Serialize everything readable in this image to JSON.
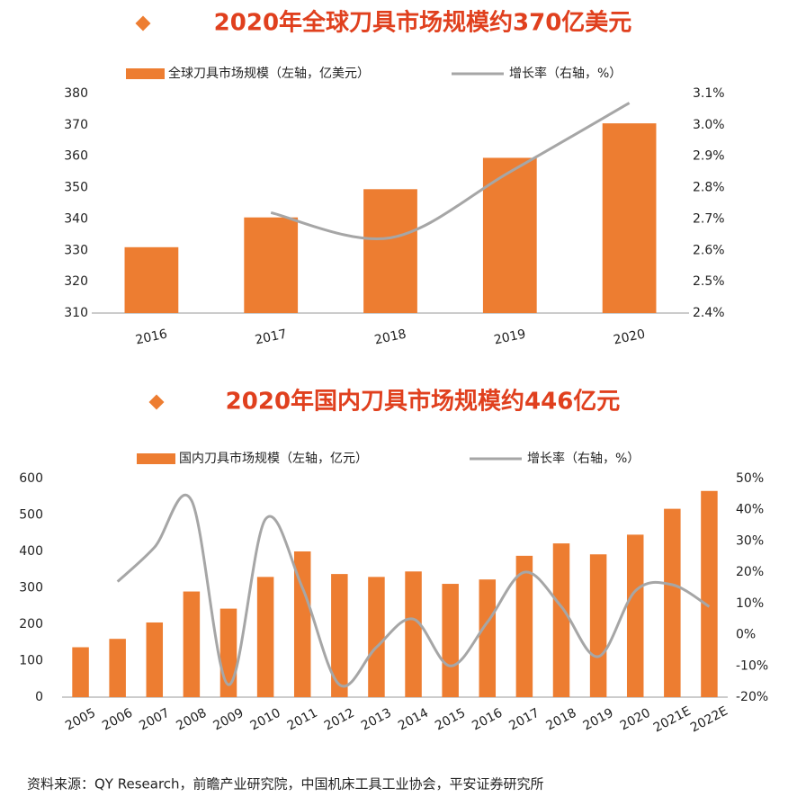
{
  "chart_data": [
    {
      "type": "bar",
      "title": "2020年全球刀具市场规模约370亿美元",
      "categories": [
        "2016",
        "2017",
        "2018",
        "2019",
        "2020"
      ],
      "series": [
        {
          "name": "全球刀具市场规模（左轴，亿美元）",
          "color": "#ed7d31",
          "values": [
            331,
            340.5,
            349.5,
            359.5,
            370.5
          ]
        },
        {
          "name": "增长率（右轴，%）",
          "color": "#a6a6a6",
          "axis": "y2",
          "type": "line",
          "values": [
            null,
            2.72,
            2.64,
            2.85,
            3.07
          ]
        }
      ],
      "ylim": [
        310,
        380
      ],
      "yticks": [
        310,
        320,
        330,
        340,
        350,
        360,
        370,
        380
      ],
      "y2lim": [
        2.4,
        3.1
      ],
      "y2ticks": [
        {
          "value": 2.4,
          "label": "2.4%"
        },
        {
          "value": 2.5,
          "label": "2.5%"
        },
        {
          "value": 2.6,
          "label": "2.6%"
        },
        {
          "value": 2.7,
          "label": "2.7%"
        },
        {
          "value": 2.8,
          "label": "2.8%"
        },
        {
          "value": 2.9,
          "label": "2.9%"
        },
        {
          "value": 3.0,
          "label": "3.0%"
        },
        {
          "value": 3.1,
          "label": "3.1%"
        }
      ],
      "grid": false
    },
    {
      "type": "bar",
      "title": "2020年国内刀具市场规模约446亿元",
      "categories": [
        "2005",
        "2006",
        "2007",
        "2008",
        "2009",
        "2010",
        "2011",
        "2012",
        "2013",
        "2014",
        "2015",
        "2016",
        "2017",
        "2018",
        "2019",
        "2020",
        "2021E",
        "2022E"
      ],
      "series": [
        {
          "name": "国内刀具市场规模（左轴，亿元）",
          "color": "#ed7d31",
          "values": [
            137,
            160,
            205,
            290,
            243,
            330,
            400,
            338,
            330,
            345,
            311,
            323,
            388,
            422,
            392,
            446,
            517,
            566
          ]
        },
        {
          "name": "增长率（右轴，%）",
          "color": "#a6a6a6",
          "axis": "y2",
          "type": "line",
          "values": [
            null,
            17,
            28,
            43,
            -16,
            37,
            15,
            -16,
            -4,
            5,
            -10,
            4,
            20,
            9,
            -7,
            14,
            16,
            9
          ]
        }
      ],
      "ylim": [
        0,
        600
      ],
      "yticks": [
        0,
        100,
        200,
        300,
        400,
        500,
        600
      ],
      "y2lim": [
        -20,
        50
      ],
      "y2ticks": [
        {
          "value": -20,
          "label": "-20%"
        },
        {
          "value": -10,
          "label": "-10%"
        },
        {
          "value": 0,
          "label": "0%"
        },
        {
          "value": 10,
          "label": "10%"
        },
        {
          "value": 20,
          "label": "20%"
        },
        {
          "value": 30,
          "label": "30%"
        },
        {
          "value": 40,
          "label": "40%"
        },
        {
          "value": 50,
          "label": "50%"
        }
      ],
      "grid": false
    }
  ],
  "source": "资料来源：QY Research，前瞻产业研究院，中国机床工具工业协会，平安证券研究所"
}
